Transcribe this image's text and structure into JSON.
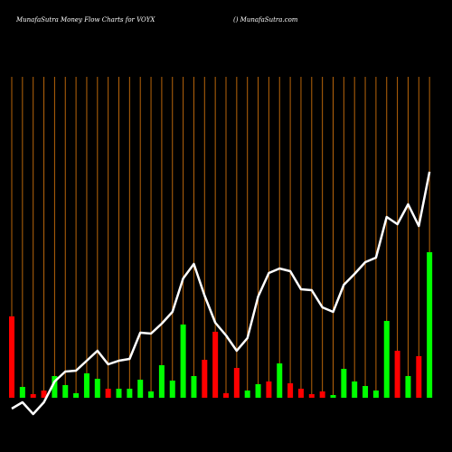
{
  "chart_data": {
    "type": "bar",
    "title": "MunafaSutra  Money Flow  Charts for VOYX",
    "subtitle": "() MunafaSutra.com",
    "values": [
      90,
      12,
      4,
      8,
      24,
      14,
      5,
      27,
      21,
      10,
      10,
      10,
      20,
      7,
      36,
      19,
      81,
      24,
      42,
      73,
      5,
      33,
      8,
      15,
      18,
      38,
      16,
      10,
      4,
      7,
      3,
      32,
      18,
      13,
      8,
      85,
      52,
      24,
      46,
      161
    ],
    "colors": [
      "#ff0000",
      "#00ff00",
      "#ff0000",
      "#ff0000",
      "#00ff00",
      "#00ff00",
      "#00ff00",
      "#00ff00",
      "#00ff00",
      "#ff0000",
      "#00ff00",
      "#00ff00",
      "#00ff00",
      "#00ff00",
      "#00ff00",
      "#00ff00",
      "#00ff00",
      "#00ff00",
      "#ff0000",
      "#ff0000",
      "#ff0000",
      "#ff0000",
      "#00ff00",
      "#00ff00",
      "#ff0000",
      "#00ff00",
      "#ff0000",
      "#ff0000",
      "#ff0000",
      "#ff0000",
      "#00ff00",
      "#00ff00",
      "#00ff00",
      "#00ff00",
      "#00ff00",
      "#00ff00",
      "#ff0000",
      "#00ff00",
      "#ff0000",
      "#00ff00"
    ],
    "line": {
      "color": "#ffffff",
      "values": [
        -12,
        -5,
        -18,
        -5,
        18,
        29,
        30,
        41,
        52,
        37,
        41,
        43,
        72,
        71,
        82,
        95,
        132,
        148,
        113,
        83,
        69,
        52,
        66,
        112,
        138,
        143,
        140,
        120,
        119,
        100,
        95,
        125,
        137,
        150,
        155,
        200,
        192,
        214,
        190,
        250
      ]
    },
    "ylim": [
      -60,
      400
    ],
    "grid_color": "#b8650a"
  }
}
